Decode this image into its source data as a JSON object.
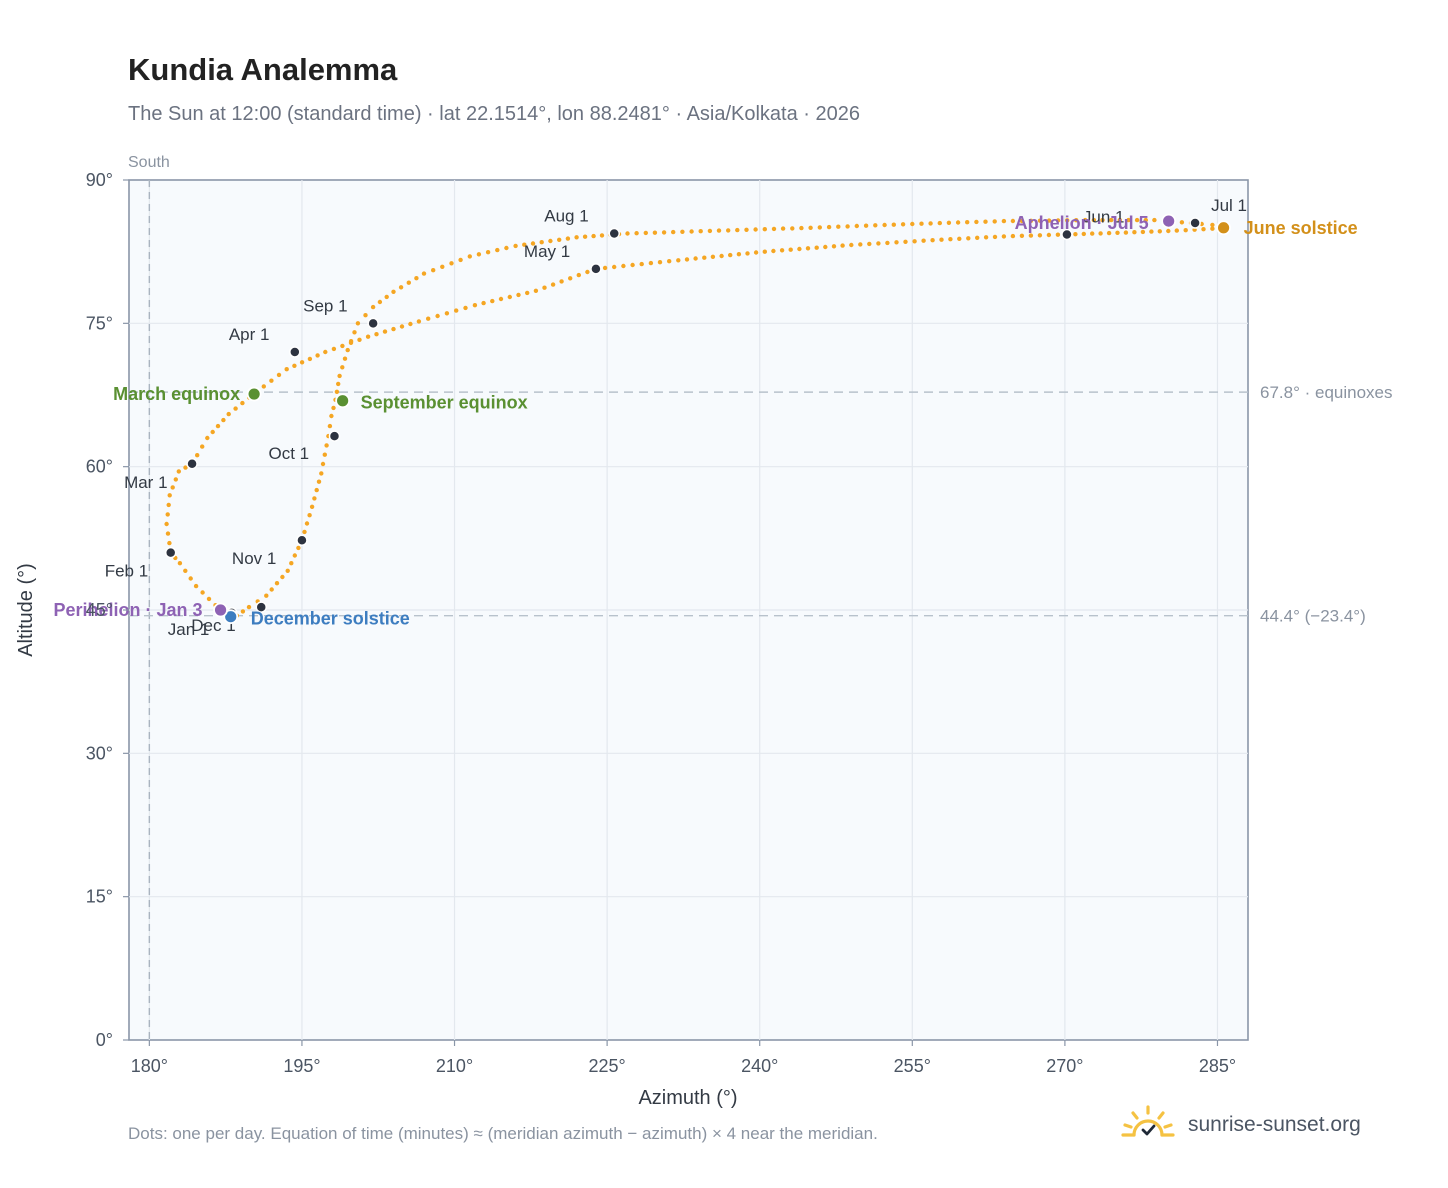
{
  "title": "Kundia Analemma",
  "subtitle": "The Sun at 12:00 (standard time) · lat 22.1514°, lon 88.2481° · Asia/Kolkata · 2026",
  "footnote": "Dots: one per day. Equation of time (minutes) ≈ (meridian azimuth − azimuth) × 4 near the meridian.",
  "brand": {
    "name": "sunrise-sunset.org",
    "logo_icon": "sun-check-icon"
  },
  "colors": {
    "curve": "#f5a623",
    "month_marker": "#2d3340",
    "equinox": "#5a9032",
    "december_solstice": "#3d7dc0",
    "june_solstice": "#d3901a",
    "perihelion_aphelion": "#8e62b4",
    "axis": "#8a96a8",
    "grid": "#e3e8ee",
    "plot_bg": "#f7fafd"
  },
  "chart_data": {
    "type": "scatter",
    "xlabel": "Azimuth (°)",
    "ylabel": "Altitude (°)",
    "xlim": [
      178,
      288
    ],
    "ylim": [
      0,
      90
    ],
    "x_ticks": [
      180,
      195,
      210,
      225,
      240,
      255,
      270,
      285
    ],
    "y_ticks": [
      0,
      15,
      30,
      45,
      60,
      75,
      90
    ],
    "x_tick_labels": [
      "180°",
      "195°",
      "210°",
      "225°",
      "240°",
      "255°",
      "270°",
      "285°"
    ],
    "y_tick_labels": [
      "0°",
      "15°",
      "30°",
      "45°",
      "60°",
      "75°",
      "90°"
    ],
    "grid": true,
    "meridian": {
      "azimuth": 180,
      "label": "South"
    },
    "reference_lines": [
      {
        "altitude": 67.8,
        "label": "67.8° · equinoxes"
      },
      {
        "altitude": 44.4,
        "label": "44.4° (−23.4°)"
      }
    ],
    "daily_path": [
      [
        188.6,
        44.4
      ],
      [
        186.5,
        45.5
      ],
      [
        184.6,
        47.5
      ],
      [
        183.0,
        49.9
      ],
      [
        182.1,
        51.0
      ],
      [
        181.7,
        54.0
      ],
      [
        182.0,
        57.0
      ],
      [
        182.9,
        59.5
      ],
      [
        184.2,
        60.3
      ],
      [
        185.7,
        63.0
      ],
      [
        187.8,
        65.5
      ],
      [
        190.5,
        67.8
      ],
      [
        193.5,
        70.2
      ],
      [
        197.3,
        72.0
      ],
      [
        201.5,
        73.6
      ],
      [
        206.5,
        75.2
      ],
      [
        212.0,
        76.9
      ],
      [
        218.0,
        78.4
      ],
      [
        223.9,
        80.7
      ],
      [
        232.0,
        81.6
      ],
      [
        240.5,
        82.5
      ],
      [
        249.0,
        83.2
      ],
      [
        257.0,
        83.7
      ],
      [
        264.0,
        84.1
      ],
      [
        270.2,
        84.3
      ],
      [
        276.0,
        84.5
      ],
      [
        281.0,
        84.7
      ],
      [
        284.5,
        84.9
      ],
      [
        285.6,
        85.0
      ],
      [
        284.5,
        85.3
      ],
      [
        282.4,
        85.5
      ],
      [
        278.8,
        85.8
      ],
      [
        272.0,
        85.8
      ],
      [
        264.0,
        85.7
      ],
      [
        255.0,
        85.4
      ],
      [
        245.0,
        85.0
      ],
      [
        236.0,
        84.7
      ],
      [
        227.0,
        84.4
      ],
      [
        222.0,
        84.0
      ],
      [
        216.0,
        83.1
      ],
      [
        211.5,
        82.0
      ],
      [
        207.0,
        80.2
      ],
      [
        204.0,
        78.3
      ],
      [
        202.0,
        76.7
      ],
      [
        200.5,
        75.0
      ],
      [
        199.5,
        72.2
      ],
      [
        198.7,
        69.5
      ],
      [
        198.3,
        67.0
      ],
      [
        197.9,
        65.3
      ],
      [
        197.6,
        63.2
      ],
      [
        196.9,
        59.3
      ],
      [
        196.0,
        55.8
      ],
      [
        195.0,
        52.3
      ],
      [
        193.6,
        49.1
      ],
      [
        191.5,
        46.5
      ],
      [
        189.8,
        45.3
      ],
      [
        188.6,
        44.4
      ]
    ],
    "month_markers": [
      {
        "label": "Jan 1",
        "x": 188.1,
        "y": 44.7
      },
      {
        "label": "Feb 1",
        "x": 182.1,
        "y": 51.0
      },
      {
        "label": "Mar 1",
        "x": 184.2,
        "y": 60.3
      },
      {
        "label": "Apr 1",
        "x": 194.3,
        "y": 72.0
      },
      {
        "label": "May 1",
        "x": 223.9,
        "y": 80.7
      },
      {
        "label": "Jun 1",
        "x": 270.2,
        "y": 84.3
      },
      {
        "label": "Jul 1",
        "x": 282.8,
        "y": 85.5
      },
      {
        "label": "Aug 1",
        "x": 225.7,
        "y": 84.4
      },
      {
        "label": "Sep 1",
        "x": 202.0,
        "y": 75.0
      },
      {
        "label": "Oct 1",
        "x": 198.2,
        "y": 63.2
      },
      {
        "label": "Nov 1",
        "x": 195.0,
        "y": 52.3
      },
      {
        "label": "Dec 1",
        "x": 191.0,
        "y": 45.3
      }
    ],
    "events": [
      {
        "label": "March equinox",
        "x": 190.3,
        "y": 67.6,
        "color_key": "equinox"
      },
      {
        "label": "September equinox",
        "x": 199.0,
        "y": 66.9,
        "color_key": "equinox"
      },
      {
        "label": "December solstice",
        "x": 188.0,
        "y": 44.3,
        "color_key": "december_solstice"
      },
      {
        "label": "June solstice",
        "x": 285.6,
        "y": 85.0,
        "color_key": "june_solstice"
      },
      {
        "label": "Perihelion · Jan 3",
        "x": 187.0,
        "y": 45.0,
        "color_key": "perihelion_aphelion"
      },
      {
        "label": "Aphelion · Jul 5",
        "x": 280.2,
        "y": 85.7,
        "color_key": "perihelion_aphelion"
      }
    ]
  }
}
